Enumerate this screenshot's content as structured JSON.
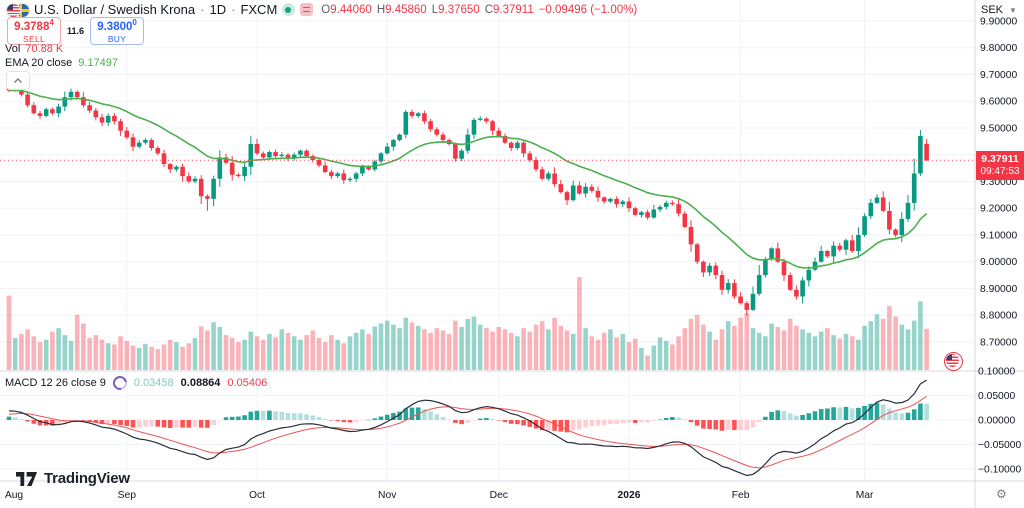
{
  "legend": {
    "symbol_title": "U.S. Dollar / Swedish Krona",
    "separator": "·",
    "interval": "1D",
    "exchange": "FXCM",
    "ohlc": {
      "o_label": "O",
      "o_value": "9.44060",
      "h_label": "H",
      "h_value": "9.45860",
      "l_label": "L",
      "l_value": "9.37650",
      "c_label": "C",
      "c_value": "9.37911",
      "change": "−0.09496 (−1.00%)"
    },
    "vol_label": "Vol",
    "vol_value": "70.88 K",
    "ema_label": "EMA 20 close",
    "ema_value": "9.17497",
    "macd_label": "MACD 12 26 close 9",
    "macd_hist_value": "0.03458",
    "macd_value": "0.08864",
    "macd_signal_value": "0.05406"
  },
  "trade_panel": {
    "sell_price": "9.3788",
    "sell_sup": "4",
    "sell_label": "SELL",
    "spread": "11.6",
    "buy_price": "9.3800",
    "buy_sup": "0",
    "buy_label": "BUY"
  },
  "price_scale": {
    "currency": "SEK",
    "last_price": "9.37911",
    "countdown": "09:47:53"
  },
  "footer": {
    "logo_text": "TradingView"
  },
  "colors": {
    "up": "#089981",
    "down": "#f23645",
    "vol_up": "rgba(8,153,129,0.42)",
    "vol_down": "rgba(242,54,69,0.38)",
    "ema": "#4caf50",
    "macd_line": "#2a2e39",
    "signal_line": "#ef5350",
    "hist_grow_above": "#26a69a",
    "hist_fall_above": "#b2dfdb",
    "hist_fall_below": "#ff5252",
    "hist_grow_below": "#ffcdd2",
    "grid": "#f0f3fa",
    "border": "#d6d9e0",
    "axis_text": "#131722",
    "accent_sell": "#f23645",
    "accent_buy": "#2962ff",
    "price_line": "#f23645"
  },
  "chart_data": {
    "type": "candlestick+volume+macd",
    "symbol": "USD/SEK",
    "timeframe": "1D",
    "exchange": "FXCM",
    "current_price": 9.37911,
    "open_first": 9.665,
    "closes": [
      9.64,
      9.65,
      9.625,
      9.585,
      9.555,
      9.545,
      9.57,
      9.555,
      9.58,
      9.615,
      9.635,
      9.615,
      9.585,
      9.565,
      9.54,
      9.52,
      9.545,
      9.525,
      9.49,
      9.465,
      9.43,
      9.445,
      9.455,
      9.425,
      9.405,
      9.365,
      9.345,
      9.355,
      9.32,
      9.3,
      9.31,
      9.245,
      9.235,
      9.31,
      9.39,
      9.37,
      9.325,
      9.32,
      9.355,
      9.44,
      9.405,
      9.39,
      9.41,
      9.395,
      9.4,
      9.385,
      9.4,
      9.415,
      9.395,
      9.38,
      9.36,
      9.335,
      9.32,
      9.33,
      9.305,
      9.31,
      9.33,
      9.355,
      9.345,
      9.375,
      9.405,
      9.43,
      9.455,
      9.475,
      9.56,
      9.545,
      9.555,
      9.525,
      9.495,
      9.475,
      9.455,
      9.44,
      9.385,
      9.415,
      9.475,
      9.53,
      9.535,
      9.525,
      9.49,
      9.47,
      9.445,
      9.425,
      9.445,
      9.405,
      9.38,
      9.345,
      9.31,
      9.33,
      9.29,
      9.26,
      9.23,
      9.285,
      9.255,
      9.28,
      9.265,
      9.24,
      9.225,
      9.235,
      9.215,
      9.225,
      9.2,
      9.175,
      9.185,
      9.165,
      9.195,
      9.205,
      9.22,
      9.215,
      9.18,
      9.13,
      9.065,
      9.0,
      8.96,
      8.985,
      8.95,
      8.895,
      8.92,
      8.87,
      8.845,
      8.82,
      8.88,
      8.95,
      9.01,
      9.05,
      9.0,
      8.95,
      8.895,
      8.87,
      8.93,
      8.97,
      9.0,
      9.04,
      9.02,
      9.06,
      9.045,
      9.08,
      9.04,
      9.1,
      9.17,
      9.22,
      9.24,
      9.19,
      9.12,
      9.1,
      9.16,
      9.22,
      9.33,
      9.47,
      9.3791
    ],
    "volumes_k": [
      128,
      55,
      62,
      70,
      58,
      48,
      52,
      66,
      72,
      60,
      50,
      95,
      80,
      55,
      60,
      52,
      46,
      44,
      58,
      50,
      42,
      38,
      45,
      40,
      36,
      44,
      52,
      48,
      40,
      46,
      55,
      75,
      68,
      82,
      74,
      60,
      55,
      48,
      52,
      66,
      58,
      52,
      62,
      56,
      70,
      64,
      58,
      52,
      60,
      68,
      55,
      48,
      60,
      52,
      46,
      58,
      64,
      70,
      62,
      75,
      80,
      85,
      78,
      72,
      90,
      82,
      76,
      70,
      64,
      72,
      68,
      62,
      85,
      74,
      88,
      92,
      78,
      72,
      66,
      74,
      70,
      64,
      58,
      72,
      66,
      78,
      84,
      70,
      90,
      76,
      68,
      62,
      160,
      72,
      58,
      52,
      64,
      70,
      56,
      62,
      48,
      54,
      38,
      25,
      42,
      56,
      50,
      44,
      58,
      72,
      88,
      95,
      78,
      66,
      52,
      70,
      84,
      76,
      90,
      98,
      72,
      64,
      58,
      80,
      74,
      68,
      88,
      76,
      70,
      64,
      58,
      66,
      72,
      60,
      54,
      62,
      58,
      52,
      76,
      84,
      96,
      88,
      110,
      92,
      78,
      70,
      85,
      118,
      70.88
    ],
    "last_candle": {
      "o": 9.4406,
      "h": 9.4586,
      "l": 9.3765,
      "c": 9.37911
    },
    "wick_overrides": {
      "0": {
        "h": 9.705
      },
      "32": {
        "l": 9.19
      },
      "119": {
        "l": 8.798
      },
      "147": {
        "h": 9.492
      }
    },
    "ema": {
      "period": 20,
      "last": 9.17497
    },
    "macd": {
      "fast": 12,
      "slow": 26,
      "signal": 9,
      "last_macd": 0.08864,
      "last_signal": 0.05406,
      "last_hist": 0.03458
    },
    "volume_last_label": "70.88 K",
    "price_axis": {
      "unit": "SEK",
      "ticks": [
        {
          "t": "9.90000",
          "v": 9.9
        },
        {
          "t": "9.80000",
          "v": 9.8
        },
        {
          "t": "9.70000",
          "v": 9.7
        },
        {
          "t": "9.60000",
          "v": 9.6
        },
        {
          "t": "9.50000",
          "v": 9.5
        },
        {
          "t": "9.40000",
          "v": 9.4
        },
        {
          "t": "9.30000",
          "v": 9.3
        },
        {
          "t": "9.20000",
          "v": 9.2
        },
        {
          "t": "9.10000",
          "v": 9.1
        },
        {
          "t": "9.00000",
          "v": 9.0
        },
        {
          "t": "8.90000",
          "v": 8.9
        },
        {
          "t": "8.80000",
          "v": 8.8
        },
        {
          "t": "8.70000",
          "v": 8.7
        }
      ]
    },
    "macd_axis": {
      "ticks": [
        {
          "t": "0.10000",
          "v": 0.1
        },
        {
          "t": "0.05000",
          "v": 0.05
        },
        {
          "t": "0.00000",
          "v": 0
        },
        {
          "t": "−0.05000",
          "v": -0.05
        },
        {
          "t": "−0.10000",
          "v": -0.1
        }
      ]
    },
    "time_axis": {
      "labels": [
        {
          "t": "Aug",
          "i": 0
        },
        {
          "t": "Sep",
          "i": 19
        },
        {
          "t": "Oct",
          "i": 40
        },
        {
          "t": "Nov",
          "i": 61
        },
        {
          "t": "Dec",
          "i": 79
        },
        {
          "t": "2026",
          "i": 100,
          "year": true
        },
        {
          "t": "Feb",
          "i": 118
        },
        {
          "t": "Mar",
          "i": 138
        }
      ]
    }
  }
}
